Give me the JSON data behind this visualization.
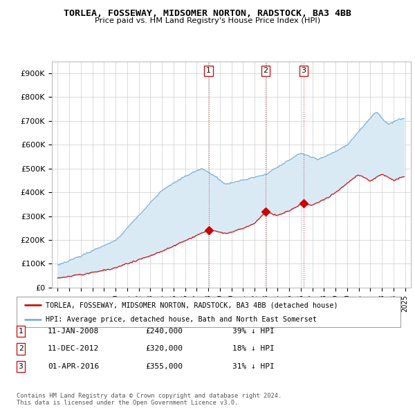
{
  "title": "TORLEA, FOSSEWAY, MIDSOMER NORTON, RADSTOCK, BA3 4BB",
  "subtitle": "Price paid vs. HM Land Registry's House Price Index (HPI)",
  "ylim": [
    0,
    950000
  ],
  "yticks": [
    0,
    100000,
    200000,
    300000,
    400000,
    500000,
    600000,
    700000,
    800000,
    900000
  ],
  "ytick_labels": [
    "£0",
    "£100K",
    "£200K",
    "£300K",
    "£400K",
    "£500K",
    "£600K",
    "£700K",
    "£800K",
    "£900K"
  ],
  "hpi_color": "#7ab0d4",
  "hpi_fill_color": "#daeaf5",
  "price_color": "#cc1111",
  "sale_marker_color": "#cc0000",
  "vline_color": "#cc3333",
  "background_color": "#ffffff",
  "grid_color": "#cccccc",
  "sales": [
    {
      "date_num": 2008.04,
      "price": 240000,
      "label": "1"
    },
    {
      "date_num": 2012.95,
      "price": 320000,
      "label": "2"
    },
    {
      "date_num": 2016.25,
      "price": 355000,
      "label": "3"
    }
  ],
  "legend_entry1": "TORLEA, FOSSEWAY, MIDSOMER NORTON, RADSTOCK, BA3 4BB (detached house)",
  "legend_entry2": "HPI: Average price, detached house, Bath and North East Somerset",
  "table_entries": [
    {
      "num": "1",
      "date": "11-JAN-2008",
      "price": "£240,000",
      "pct": "39% ↓ HPI"
    },
    {
      "num": "2",
      "date": "11-DEC-2012",
      "price": "£320,000",
      "pct": "18% ↓ HPI"
    },
    {
      "num": "3",
      "date": "01-APR-2016",
      "price": "£355,000",
      "pct": "31% ↓ HPI"
    }
  ],
  "footnote": "Contains HM Land Registry data © Crown copyright and database right 2024.\nThis data is licensed under the Open Government Licence v3.0.",
  "xlim_start": 1994.5,
  "xlim_end": 2025.5
}
